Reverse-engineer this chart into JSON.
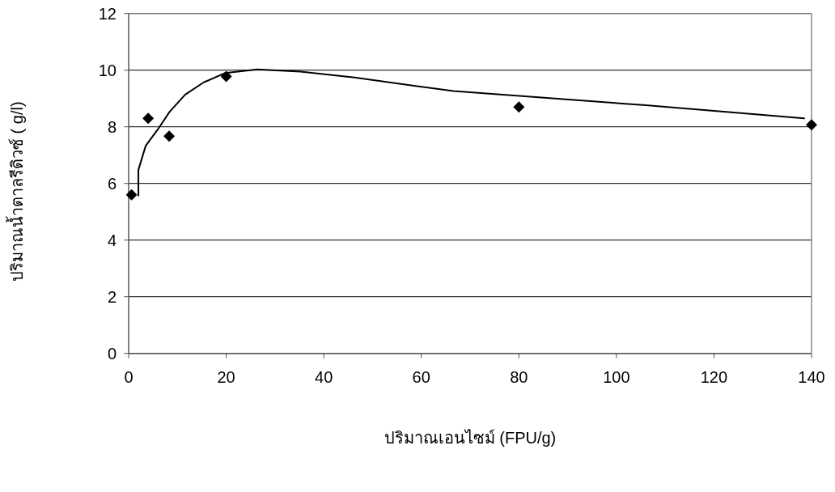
{
  "chart_data": {
    "type": "scatter",
    "xlabel": "ปริมาณเอนไซม์ (FPU/g)",
    "ylabel": "ปริมาณน้ำตาลรีดิวซ์ ( g/l)",
    "xlim": [
      0,
      140
    ],
    "xticks": [
      0,
      20,
      40,
      60,
      80,
      100,
      120,
      140
    ],
    "ylim": [
      0,
      12
    ],
    "yticks": [
      0,
      2,
      4,
      6,
      8,
      10,
      12
    ],
    "grid": "y",
    "series": [
      {
        "marker": "diamond",
        "color": "#000000",
        "x": [
          0.6,
          4,
          8.3,
          20,
          80,
          140
        ],
        "values": [
          5.6,
          8.3,
          7.67,
          9.78,
          8.7,
          8.07
        ]
      },
      {
        "type": "line",
        "color": "#000000",
        "x": [
          2,
          2,
          3.5,
          5.95,
          8.4,
          11.6,
          15.4,
          19.8,
          26.4,
          35.2,
          46.3,
          66.6,
          106,
          138.5
        ],
        "values": [
          5.57,
          6.48,
          7.33,
          7.9,
          8.53,
          9.14,
          9.57,
          9.9,
          10.03,
          9.95,
          9.74,
          9.26,
          8.76,
          8.3
        ]
      }
    ]
  }
}
